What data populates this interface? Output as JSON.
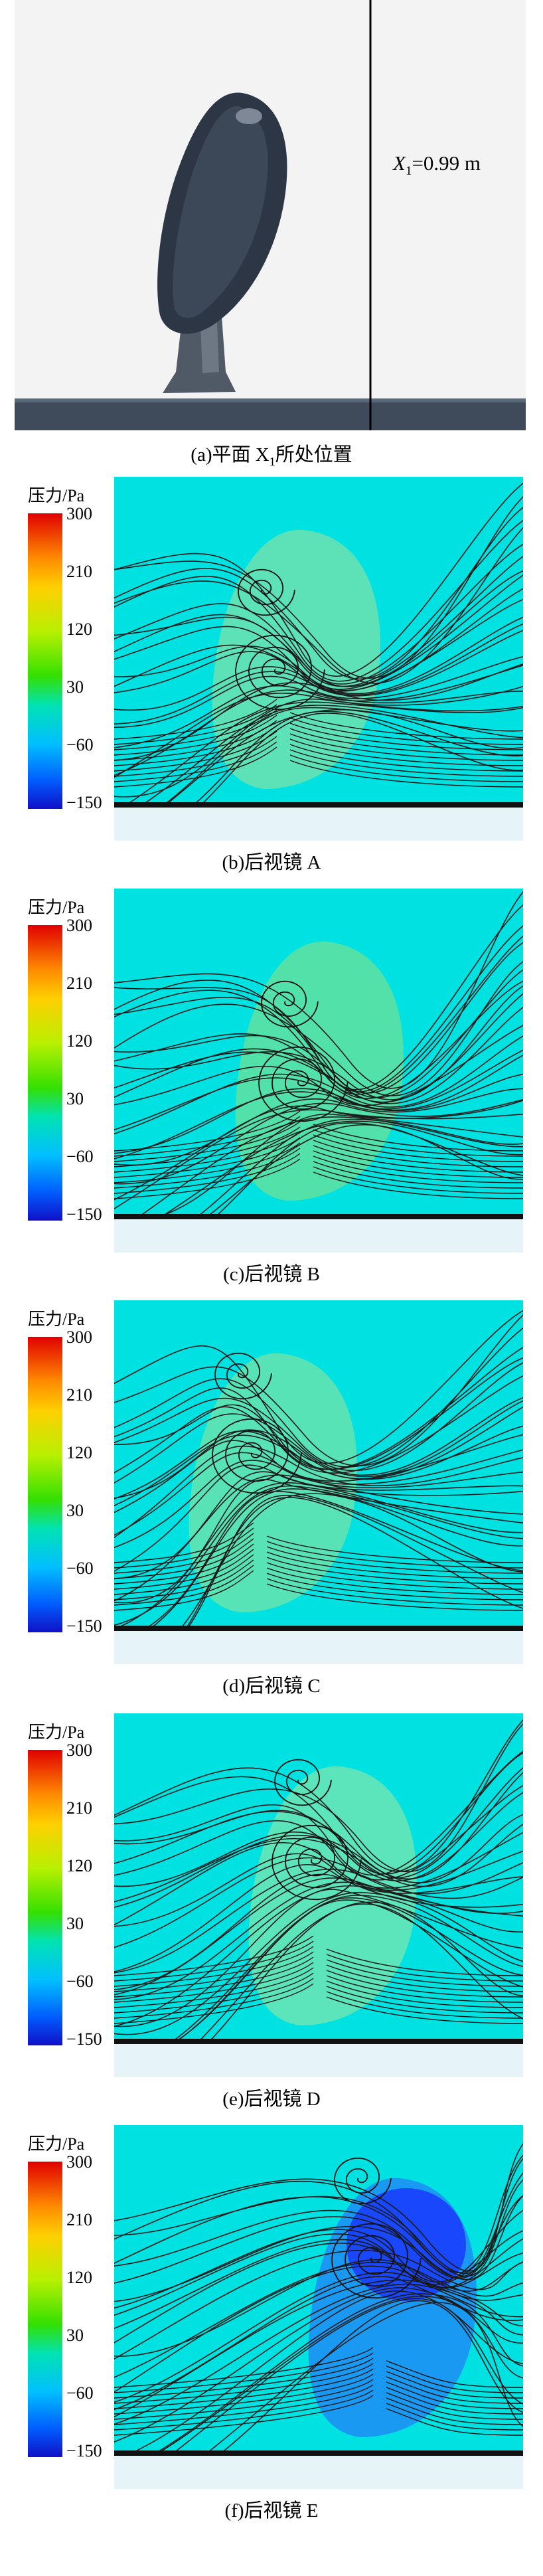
{
  "figure_a": {
    "annotation": "X",
    "annotation_sub": "1",
    "annotation_value": "=0.99 m",
    "caption": "(a)平面 X",
    "caption_sub": "1",
    "caption_tail": "所处位置"
  },
  "colorbar": {
    "title": "压力/Pa",
    "ticks": [
      "300",
      "210",
      "120",
      "30",
      "−60",
      "−150"
    ],
    "colors": [
      "#e00000",
      "#ff8a00",
      "#ffd000",
      "#b8f000",
      "#34e000",
      "#00e2b4",
      "#00bfff",
      "#0060ff",
      "#1010c8"
    ]
  },
  "panels": [
    {
      "caption": "(b)后视镜 A"
    },
    {
      "caption": "(c)后视镜 B"
    },
    {
      "caption": "(d)后视镜 C"
    },
    {
      "caption": "(e)后视镜 D"
    },
    {
      "caption": "(f)后视镜 E"
    }
  ]
}
